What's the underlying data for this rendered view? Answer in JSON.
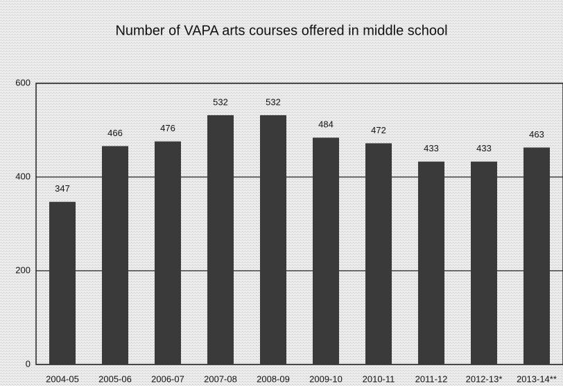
{
  "chart_data": {
    "type": "bar",
    "title": "Number of VAPA arts courses offered in middle school",
    "categories": [
      "2004-05",
      "2005-06",
      "2006-07",
      "2007-08",
      "2008-09",
      "2009-10",
      "2010-11",
      "2011-12",
      "2012-13*",
      "2013-14**"
    ],
    "values": [
      347,
      466,
      476,
      532,
      532,
      484,
      472,
      433,
      433,
      463
    ],
    "color": "#3a3a3a",
    "ylim": [
      0,
      600
    ],
    "yticks": [
      0,
      200,
      400,
      600
    ],
    "grid": true
  }
}
